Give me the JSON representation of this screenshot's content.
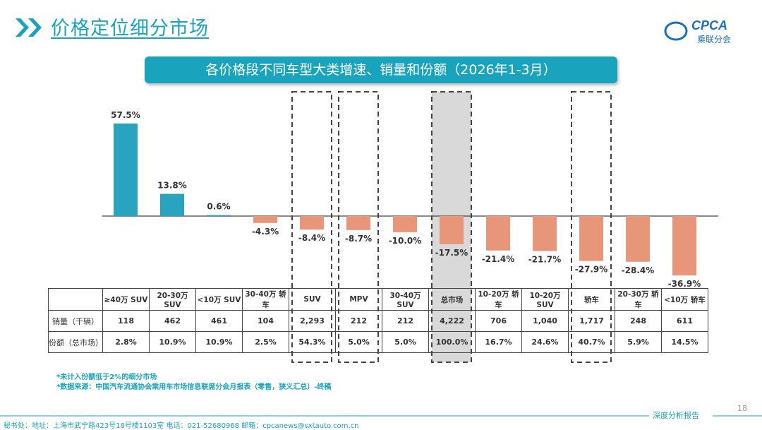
{
  "header": {
    "title": "价格定位细分市场",
    "logo_text": "CPCA",
    "logo_sub": "乘联分会"
  },
  "banner": "各价格段不同车型大类增速、销量和份额（2026年1-3月）",
  "colors": {
    "accent": "#1aa3bd",
    "positive": "#2aa3c0",
    "negative": "#e8967a",
    "highlight": "#d9d9d9"
  },
  "chart_data": {
    "type": "bar",
    "title": "各价格段不同车型大类增速、销量和份额（2026年1-3月）",
    "categories": [
      "≥40万 SUV",
      "20-30万 SUV",
      "<10万 SUV",
      "30-40万 轿车",
      "SUV",
      "MPV",
      "30-40万 SUV",
      "总市场",
      "10-20万 轿车",
      "10-20万 SUV",
      "轿车",
      "20-30万 轿车",
      "<10万 轿车"
    ],
    "values": [
      57.5,
      13.8,
      0.6,
      -4.3,
      -8.4,
      -8.7,
      -10.0,
      -17.5,
      -21.4,
      -21.7,
      -27.9,
      -28.4,
      -36.9
    ],
    "data_labels": [
      "57.5%",
      "13.8%",
      "0.6%",
      "-4.3%",
      "-8.4%",
      "-8.7%",
      "-10.0%",
      "-17.5%",
      "-21.4%",
      "-21.7%",
      "-27.9%",
      "-28.4%",
      "-36.9%"
    ],
    "highlighted_dashed": [
      "SUV",
      "MPV",
      "总市场",
      "轿车"
    ],
    "highlighted_filled": [
      "总市场"
    ],
    "grid": false
  },
  "table": {
    "rows": [
      {
        "label": "销量（千辆）",
        "values": [
          "118",
          "462",
          "461",
          "104",
          "2,293",
          "212",
          "212",
          "4,222",
          "706",
          "1,040",
          "1,717",
          "248",
          "611"
        ]
      },
      {
        "label": "份额（总市场）",
        "values": [
          "2.8%",
          "10.9%",
          "10.9%",
          "2.5%",
          "54.3%",
          "5.0%",
          "5.0%",
          "100.0%",
          "16.7%",
          "24.6%",
          "40.7%",
          "5.9%",
          "14.5%"
        ]
      }
    ]
  },
  "notes": [
    "*未计入份额低于2%的细分市场",
    "*数据来源：中国汽车流通协会乘用车市场信息联席分会月报表（零售，狭义汇总）-终稿"
  ],
  "footer": {
    "report": "深度分析报告",
    "page": "18",
    "address": "秘书处：地址：上海市武宁路423号18号楼1103室  电话：021-52680968  邮箱：cpcanews@sxtauto.com.cn"
  }
}
